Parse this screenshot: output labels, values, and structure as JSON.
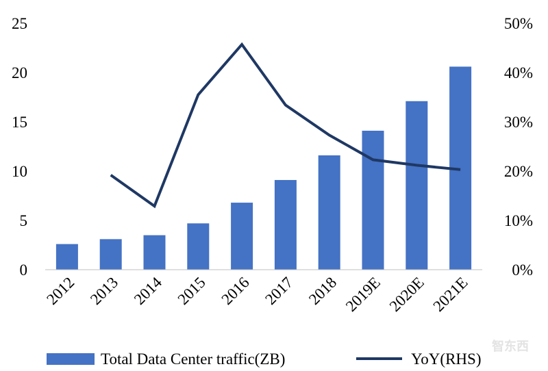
{
  "chart_data": {
    "type": "bar",
    "title": "",
    "xlabel": "",
    "ylabel": "",
    "categories": [
      "2012",
      "2013",
      "2014",
      "2015",
      "2016",
      "2017",
      "2018",
      "2019E",
      "2020E",
      "2021E"
    ],
    "series": [
      {
        "name": "Total Data Center traffic(ZB)",
        "type": "bar",
        "axis": "left",
        "color": "#4472C4",
        "values": [
          2.6,
          3.1,
          3.5,
          4.7,
          6.8,
          9.1,
          11.6,
          14.1,
          17.1,
          20.6
        ]
      },
      {
        "name": "YoY(RHS)",
        "type": "line",
        "axis": "right",
        "color": "#1F3864",
        "values": [
          null,
          19.2,
          12.9,
          35.5,
          45.7,
          33.4,
          27.3,
          22.3,
          21.2,
          20.3
        ]
      }
    ],
    "y_left": {
      "min": 0,
      "max": 25,
      "ticks": [
        "0",
        "5",
        "10",
        "15",
        "20",
        "25"
      ]
    },
    "y_right": {
      "min": 0,
      "max": 50,
      "ticks": [
        "0%",
        "10%",
        "20%",
        "30%",
        "40%",
        "50%"
      ]
    },
    "grid": false,
    "legend_position": "bottom"
  },
  "watermark": {
    "text": "智东西"
  }
}
